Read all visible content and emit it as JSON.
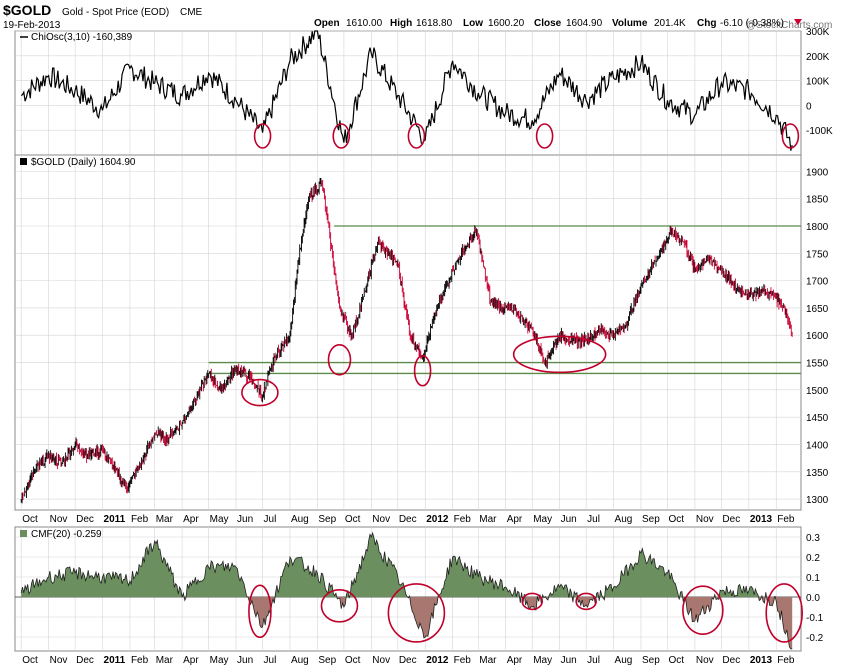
{
  "header": {
    "symbol": "$GOLD",
    "description": "Gold - Spot Price (EOD)",
    "exchange": "CME",
    "date": "19-Feb-2013",
    "ohlc": {
      "open_label": "Open",
      "open": "1610.00",
      "high_label": "High",
      "high": "1618.80",
      "low_label": "Low",
      "low": "1600.20",
      "close_label": "Close",
      "close": "1604.90",
      "volume_label": "Volume",
      "volume": "201.4K",
      "chg_label": "Chg",
      "chg": "-6.10 (-0.38%)"
    },
    "watermark": "@StockCharts.com"
  },
  "colors": {
    "price_up": "#000000",
    "price_down": "#cc0033",
    "circle": "#c0002a",
    "cmf_positive": "#6b8f5e",
    "cmf_negative": "#a8776f",
    "hline": "#5a8a4a",
    "grid": "#d4d4d4"
  },
  "chart_data": [
    {
      "type": "line",
      "legend": "ChiOsc(3,10) -160,389",
      "x": [
        "2010-10-01",
        "2010-11-01",
        "2010-12-01",
        "2011-01-01",
        "2011-02-01",
        "2011-03-01",
        "2011-04-01",
        "2011-05-01",
        "2011-06-01",
        "2011-07-01",
        "2011-08-01",
        "2011-09-01",
        "2011-10-01",
        "2011-11-01",
        "2011-12-01",
        "2012-01-01",
        "2012-02-01",
        "2012-03-01",
        "2012-04-01",
        "2012-05-01",
        "2012-06-01",
        "2012-07-01",
        "2012-08-01",
        "2012-09-01",
        "2012-10-01",
        "2012-11-01",
        "2012-12-01",
        "2013-01-01",
        "2013-02-01",
        "2013-02-19"
      ],
      "values": [
        40000,
        120000,
        60000,
        -20000,
        150000,
        90000,
        40000,
        130000,
        20000,
        -110000,
        180000,
        300000,
        -150000,
        210000,
        40000,
        -140000,
        180000,
        50000,
        -30000,
        -60000,
        130000,
        20000,
        110000,
        170000,
        20000,
        -40000,
        90000,
        60000,
        -40000,
        -160389
      ],
      "ylim": [
        -200000,
        300000
      ],
      "yticks": [
        "300K",
        "200K",
        "100K",
        "0",
        "-100K"
      ],
      "ytick_values": [
        300000,
        200000,
        100000,
        0,
        -100000
      ]
    },
    {
      "type": "line",
      "legend": "$GOLD (Daily) 1604.90",
      "x": [
        "2010-10-01",
        "2010-10-15",
        "2010-11-01",
        "2010-11-15",
        "2010-12-01",
        "2010-12-15",
        "2011-01-01",
        "2011-01-28",
        "2011-02-15",
        "2011-03-01",
        "2011-03-15",
        "2011-04-01",
        "2011-04-15",
        "2011-05-01",
        "2011-05-15",
        "2011-06-01",
        "2011-06-15",
        "2011-07-01",
        "2011-07-15",
        "2011-08-01",
        "2011-08-10",
        "2011-08-22",
        "2011-09-06",
        "2011-09-15",
        "2011-09-26",
        "2011-10-10",
        "2011-10-25",
        "2011-11-08",
        "2011-11-20",
        "2011-12-01",
        "2011-12-15",
        "2011-12-29",
        "2012-01-15",
        "2012-02-01",
        "2012-02-15",
        "2012-02-28",
        "2012-03-15",
        "2012-04-01",
        "2012-04-15",
        "2012-05-01",
        "2012-05-16",
        "2012-06-01",
        "2012-06-15",
        "2012-07-01",
        "2012-07-15",
        "2012-08-01",
        "2012-08-15",
        "2012-09-01",
        "2012-09-15",
        "2012-10-05",
        "2012-10-20",
        "2012-11-01",
        "2012-11-15",
        "2012-12-01",
        "2012-12-15",
        "2013-01-01",
        "2013-01-15",
        "2013-02-01",
        "2013-02-10",
        "2013-02-19"
      ],
      "values": [
        1300,
        1350,
        1380,
        1365,
        1400,
        1380,
        1390,
        1320,
        1370,
        1420,
        1410,
        1440,
        1480,
        1530,
        1500,
        1540,
        1525,
        1490,
        1560,
        1600,
        1730,
        1850,
        1880,
        1780,
        1650,
        1600,
        1680,
        1770,
        1750,
        1730,
        1600,
        1560,
        1650,
        1720,
        1760,
        1790,
        1660,
        1650,
        1640,
        1610,
        1550,
        1600,
        1590,
        1590,
        1610,
        1600,
        1620,
        1690,
        1730,
        1790,
        1770,
        1720,
        1740,
        1720,
        1690,
        1675,
        1680,
        1670,
        1650,
        1604.9
      ],
      "ylim": [
        1280,
        1930
      ],
      "yticks": [
        "1900",
        "1850",
        "1800",
        "1750",
        "1700",
        "1650",
        "1600",
        "1550",
        "1500",
        "1450",
        "1400",
        "1350",
        "1300"
      ],
      "ytick_values": [
        1900,
        1850,
        1800,
        1750,
        1700,
        1650,
        1600,
        1550,
        1500,
        1450,
        1400,
        1350,
        1300
      ],
      "horizontal_lines": [
        1800,
        1550,
        1530
      ]
    },
    {
      "type": "area",
      "legend": "CMF(20) -0.259",
      "x": [
        "2010-10-01",
        "2010-11-01",
        "2010-12-01",
        "2011-01-01",
        "2011-02-01",
        "2011-03-01",
        "2011-04-01",
        "2011-05-01",
        "2011-06-01",
        "2011-07-01",
        "2011-08-01",
        "2011-09-01",
        "2011-10-01",
        "2011-11-01",
        "2011-12-01",
        "2012-01-01",
        "2012-02-01",
        "2012-03-01",
        "2012-04-01",
        "2012-05-01",
        "2012-06-01",
        "2012-07-01",
        "2012-08-01",
        "2012-09-01",
        "2012-10-01",
        "2012-11-01",
        "2012-12-01",
        "2013-01-01",
        "2013-02-01",
        "2013-02-19"
      ],
      "values": [
        0.02,
        0.1,
        0.12,
        0.1,
        0.08,
        0.28,
        0.0,
        0.15,
        0.15,
        -0.15,
        0.2,
        0.12,
        -0.05,
        0.3,
        0.1,
        -0.2,
        0.2,
        0.1,
        0.05,
        -0.05,
        0.05,
        -0.04,
        0.05,
        0.22,
        0.12,
        -0.12,
        0.03,
        0.03,
        -0.02,
        -0.259
      ],
      "ylim": [
        -0.27,
        0.35
      ],
      "yticks": [
        "0.3",
        "0.2",
        "0.1",
        "0.0",
        "-0.1",
        "-0.2"
      ],
      "ytick_values": [
        0.3,
        0.2,
        0.1,
        0.0,
        -0.1,
        -0.2
      ]
    }
  ],
  "x_axis": {
    "labels": [
      "Oct",
      "Nov",
      "Dec",
      "2011",
      "Feb",
      "Mar",
      "Apr",
      "May",
      "Jun",
      "Jul",
      "Aug",
      "Sep",
      "Oct",
      "Nov",
      "Dec",
      "2012",
      "Feb",
      "Mar",
      "Apr",
      "May",
      "Jun",
      "Jul",
      "Aug",
      "Sep",
      "Oct",
      "Nov",
      "Dec",
      "2013",
      "Feb"
    ],
    "dates": [
      "2010-10-01",
      "2010-11-01",
      "2010-12-01",
      "2011-01-01",
      "2011-02-01",
      "2011-03-01",
      "2011-04-01",
      "2011-05-01",
      "2011-06-01",
      "2011-07-01",
      "2011-08-01",
      "2011-09-01",
      "2011-10-01",
      "2011-11-01",
      "2011-12-01",
      "2012-01-01",
      "2012-02-01",
      "2012-03-01",
      "2012-04-01",
      "2012-05-01",
      "2012-06-01",
      "2012-07-01",
      "2012-08-01",
      "2012-09-01",
      "2012-10-01",
      "2012-11-01",
      "2012-12-01",
      "2013-01-01",
      "2013-02-01"
    ],
    "bold_labels": [
      "2011",
      "2012",
      "2013"
    ]
  },
  "annotations": {
    "osc_circles": [
      "2011-07-01",
      "2011-09-28",
      "2011-12-22",
      "2012-05-15",
      "2013-02-17"
    ],
    "price_circles": [
      "2011-06-28",
      "2011-09-26",
      "2011-12-29",
      "2012-06-01"
    ],
    "cmf_circles": [
      "2011-06-28",
      "2011-09-26",
      "2011-12-22",
      "2012-05-01",
      "2012-07-01",
      "2012-11-10",
      "2013-02-10"
    ]
  }
}
